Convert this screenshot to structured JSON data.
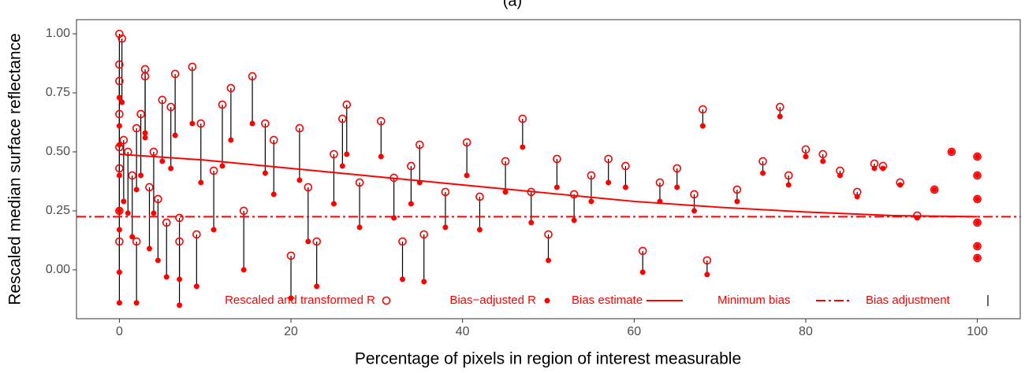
{
  "chart_data": {
    "type": "scatter",
    "title": "(a)",
    "x_label": "Percentage of pixels in region of interest measurable",
    "y_label": "Rescaled median surface reflectance",
    "xlim": [
      -5,
      105
    ],
    "ylim": [
      -0.207,
      1.06
    ],
    "xticks": [
      0,
      20,
      40,
      60,
      80,
      100
    ],
    "yticks": [
      {
        "value": 0,
        "label": "0.00"
      },
      0.25,
      {
        "value": 0.5,
        "label": "0.50"
      },
      0.75,
      {
        "value": 1,
        "label": "1.00"
      }
    ],
    "grid": false,
    "x": [
      0,
      0,
      0,
      0,
      0,
      0,
      0,
      0,
      0.3,
      0.5,
      1,
      1.5,
      2,
      2,
      2.5,
      3,
      3,
      3.5,
      4,
      4.5,
      5,
      5.5,
      6,
      6.5,
      7,
      7,
      8.5,
      9,
      9.5,
      11,
      12,
      13,
      14.5,
      15.5,
      17,
      18,
      20,
      21,
      22,
      23,
      25,
      26,
      26.5,
      28,
      30.5,
      32,
      33,
      34,
      35,
      35.5,
      38,
      40.5,
      42,
      45,
      47,
      48,
      50,
      51,
      53,
      55,
      57,
      59,
      61,
      63,
      65,
      67,
      68,
      68.5,
      72,
      75,
      77,
      78,
      80,
      82,
      84,
      86,
      88,
      89,
      91,
      93,
      95,
      97,
      100,
      100,
      100,
      100,
      100,
      100
    ],
    "series": [
      {
        "name": "Rescaled and transformed R",
        "color": "#ff0000",
        "values": [
          1.0,
          0.87,
          0.8,
          0.66,
          0.52,
          0.43,
          0.25,
          0.12,
          0.98,
          0.55,
          0.5,
          0.4,
          0.6,
          0.12,
          0.66,
          0.85,
          0.82,
          0.35,
          0.5,
          0.3,
          0.72,
          0.2,
          0.69,
          0.83,
          0.12,
          0.22,
          0.86,
          0.15,
          0.62,
          0.42,
          0.7,
          0.77,
          0.25,
          0.82,
          0.62,
          0.55,
          0.06,
          0.6,
          0.35,
          0.12,
          0.49,
          0.64,
          0.7,
          0.37,
          0.63,
          0.39,
          0.12,
          0.44,
          0.53,
          0.15,
          0.33,
          0.54,
          0.31,
          0.46,
          0.64,
          0.33,
          0.15,
          0.47,
          0.32,
          0.4,
          0.47,
          0.44,
          0.08,
          0.37,
          0.43,
          0.32,
          0.68,
          0.04,
          0.34,
          0.46,
          0.69,
          0.4,
          0.51,
          0.49,
          0.42,
          0.33,
          0.45,
          0.44,
          0.37,
          0.23,
          0.34,
          0.5,
          0.48,
          0.4,
          0.3,
          0.2,
          0.1,
          0.05
        ]
      },
      {
        "name": "Bias−adjusted R",
        "color": "#ff0000",
        "values": [
          0.73,
          0.61,
          0.53,
          0.4,
          0.25,
          0.17,
          -0.01,
          -0.14,
          0.71,
          0.29,
          0.24,
          0.14,
          0.34,
          -0.14,
          0.4,
          0.58,
          0.56,
          0.09,
          0.24,
          0.04,
          0.46,
          -0.03,
          0.43,
          0.57,
          -0.15,
          -0.04,
          0.62,
          -0.07,
          0.37,
          0.17,
          0.44,
          0.55,
          0.0,
          0.62,
          0.41,
          0.32,
          -0.12,
          0.38,
          0.12,
          -0.07,
          0.28,
          0.44,
          0.49,
          0.18,
          0.48,
          0.22,
          -0.04,
          0.28,
          0.37,
          -0.05,
          0.18,
          0.4,
          0.17,
          0.33,
          0.52,
          0.2,
          0.04,
          0.35,
          0.21,
          0.29,
          0.37,
          0.35,
          -0.01,
          0.29,
          0.35,
          0.25,
          0.61,
          -0.02,
          0.29,
          0.41,
          0.65,
          0.36,
          0.48,
          0.46,
          0.4,
          0.31,
          0.43,
          0.43,
          0.36,
          0.22,
          0.34,
          0.5,
          0.48,
          0.4,
          0.3,
          0.2,
          0.1,
          0.05
        ]
      }
    ],
    "bias_estimate": {
      "name": "Bias estimate",
      "color": "#ff0000",
      "x": [
        0,
        10,
        20,
        30,
        40,
        50,
        60,
        70,
        80,
        90,
        100
      ],
      "values": [
        0.49,
        0.465,
        0.43,
        0.395,
        0.36,
        0.325,
        0.29,
        0.265,
        0.245,
        0.23,
        0.225
      ]
    },
    "minimum_bias": {
      "name": "Minimum bias",
      "color": "#ff0000",
      "value": 0.225
    },
    "bias_adjustment": {
      "name": "Bias adjustment",
      "color": "#000000"
    }
  }
}
